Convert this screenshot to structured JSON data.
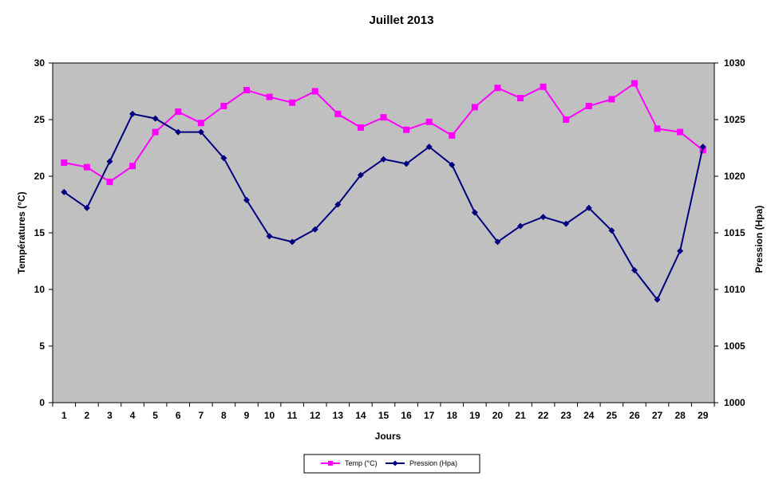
{
  "chart_data": {
    "type": "line",
    "title": "Juillet 2013",
    "xlabel": "Jours",
    "ylabel_left": "Températures (°C)",
    "ylabel_right": "Pression (Hpa)",
    "ylim_left": [
      0,
      30
    ],
    "ylim_right": [
      1000,
      1030
    ],
    "yticks_left": [
      0,
      5,
      10,
      15,
      20,
      25,
      30
    ],
    "yticks_right": [
      1000,
      1005,
      1010,
      1015,
      1020,
      1025,
      1030
    ],
    "x": [
      1,
      2,
      3,
      4,
      5,
      6,
      7,
      8,
      9,
      10,
      11,
      12,
      13,
      14,
      15,
      16,
      17,
      18,
      19,
      20,
      21,
      22,
      23,
      24,
      25,
      26,
      27,
      28,
      29
    ],
    "grid": false,
    "legend_position": "bottom",
    "plot_background": "#c0c0c0",
    "series": [
      {
        "name": "Temp (°C)",
        "axis": "left",
        "color": "#ff00ff",
        "marker": "square",
        "values": [
          21.2,
          20.8,
          19.5,
          20.9,
          23.9,
          25.7,
          24.7,
          26.2,
          27.6,
          27.0,
          26.5,
          27.5,
          25.5,
          24.3,
          25.2,
          24.1,
          24.8,
          23.6,
          26.1,
          27.8,
          26.9,
          27.9,
          25.0,
          26.2,
          26.8,
          28.2,
          24.2,
          23.9,
          22.3
        ]
      },
      {
        "name": "Pression (Hpa)",
        "axis": "right",
        "color": "#000080",
        "marker": "diamond",
        "values": [
          1018.6,
          1017.2,
          1021.3,
          1025.5,
          1025.1,
          1023.9,
          1023.9,
          1021.6,
          1017.9,
          1014.7,
          1014.2,
          1015.3,
          1017.5,
          1020.1,
          1021.5,
          1021.1,
          1022.6,
          1021.0,
          1016.8,
          1014.2,
          1015.6,
          1016.4,
          1015.8,
          1017.2,
          1015.2,
          1011.7,
          1009.1,
          1013.4,
          1022.6
        ]
      }
    ]
  }
}
